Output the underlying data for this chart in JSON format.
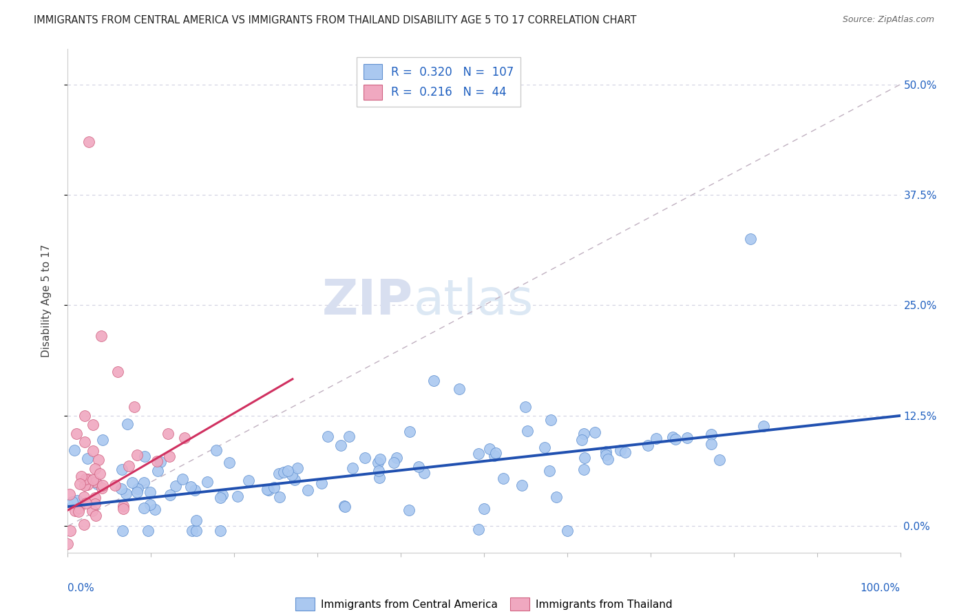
{
  "title": "IMMIGRANTS FROM CENTRAL AMERICA VS IMMIGRANTS FROM THAILAND DISABILITY AGE 5 TO 17 CORRELATION CHART",
  "source": "Source: ZipAtlas.com",
  "ylabel": "Disability Age 5 to 17",
  "ytick_labels": [
    "0.0%",
    "12.5%",
    "25.0%",
    "37.5%",
    "50.0%"
  ],
  "ytick_values": [
    0.0,
    0.125,
    0.25,
    0.375,
    0.5
  ],
  "xlim": [
    0.0,
    1.0
  ],
  "ylim": [
    -0.03,
    0.54
  ],
  "R_blue": 0.32,
  "N_blue": 107,
  "R_pink": 0.216,
  "N_pink": 44,
  "color_blue_fill": "#aac8f0",
  "color_blue_edge": "#6090d0",
  "color_pink_fill": "#f0a8c0",
  "color_pink_edge": "#d06080",
  "color_blue_line": "#2050b0",
  "color_pink_line": "#d03060",
  "legend_label_blue": "Immigrants from Central America",
  "legend_label_pink": "Immigrants from Thailand",
  "background_color": "#ffffff",
  "grid_color": "#d0d0e0",
  "ref_line_color": "#c0b0c0",
  "blue_line_intercept": 0.022,
  "blue_line_slope": 0.103,
  "pink_line_intercept": 0.018,
  "pink_line_slope": 0.55,
  "pink_line_xmax": 0.27
}
